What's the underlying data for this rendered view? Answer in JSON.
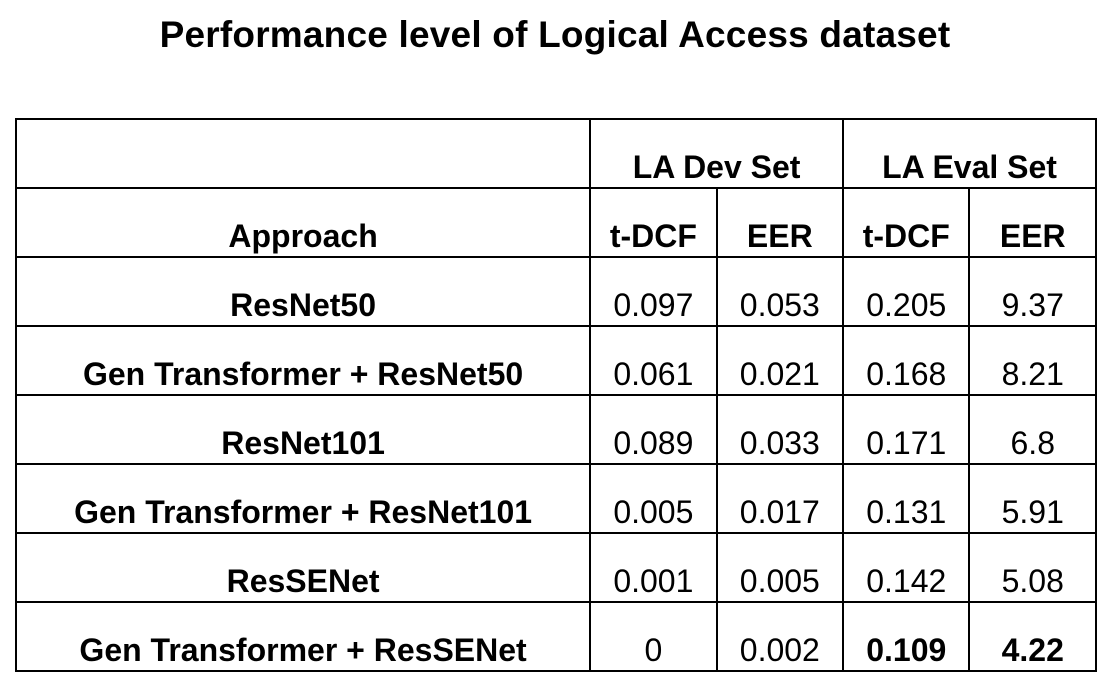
{
  "title": "Performance level of Logical Access dataset",
  "table": {
    "group_headers": [
      "LA Dev Set",
      "LA Eval Set"
    ],
    "approach_header": "Approach",
    "metric_headers": [
      "t-DCF",
      "EER",
      "t-DCF",
      "EER"
    ],
    "rows": [
      {
        "approach": "ResNet50",
        "values": [
          "0.097",
          "0.053",
          "0.205",
          "9.37"
        ]
      },
      {
        "approach": "Gen Transformer + ResNet50",
        "values": [
          "0.061",
          "0.021",
          "0.168",
          "8.21"
        ]
      },
      {
        "approach": "ResNet101",
        "values": [
          "0.089",
          "0.033",
          "0.171",
          "6.8"
        ]
      },
      {
        "approach": "Gen Transformer + ResNet101",
        "values": [
          "0.005",
          "0.017",
          "0.131",
          "5.91"
        ]
      },
      {
        "approach": "ResSENet",
        "values": [
          "0.001",
          "0.005",
          "0.142",
          "5.08"
        ]
      },
      {
        "approach": "Gen Transformer + ResSENet",
        "values": [
          "0",
          "0.002",
          "0.109",
          "4.22"
        ]
      }
    ]
  }
}
